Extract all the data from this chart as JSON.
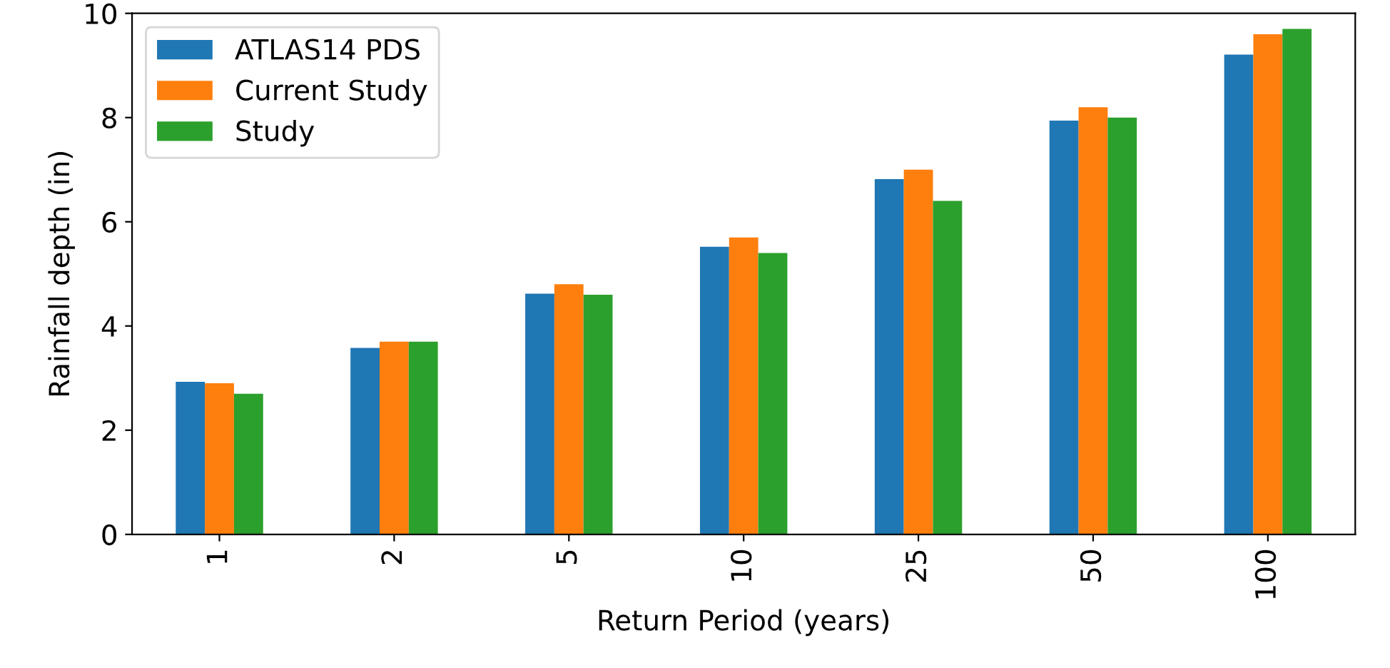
{
  "chart_data": {
    "type": "bar",
    "xlabel": "Return Period (years)",
    "ylabel": "Rainfall depth (in)",
    "categories": [
      "1",
      "2",
      "5",
      "10",
      "25",
      "50",
      "100"
    ],
    "series": [
      {
        "name": "ATLAS14 PDS",
        "color": "#1f77b4",
        "values": [
          2.93,
          3.58,
          4.62,
          5.52,
          6.82,
          7.94,
          9.21
        ]
      },
      {
        "name": "Current Study",
        "color": "#ff7f0e",
        "values": [
          2.9,
          3.7,
          4.8,
          5.7,
          7.0,
          8.2,
          9.6
        ]
      },
      {
        "name": "Study",
        "color": "#2ca02c",
        "values": [
          2.7,
          3.7,
          4.6,
          5.4,
          6.4,
          8.0,
          9.7
        ]
      }
    ],
    "ylim": [
      0,
      10
    ],
    "yticks": [
      0,
      2,
      4,
      6,
      8,
      10
    ],
    "legend": "top left"
  }
}
